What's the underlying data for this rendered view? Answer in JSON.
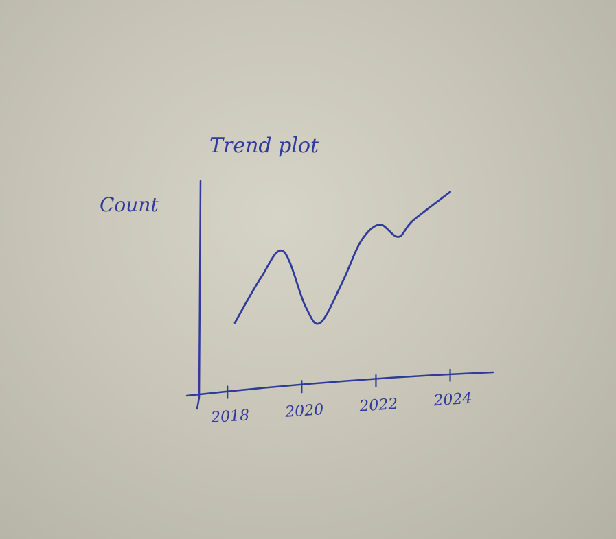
{
  "chart_data": {
    "type": "line",
    "title": "Trend plot",
    "xlabel": "",
    "ylabel": "Count",
    "x_ticks": [
      2018,
      2020,
      2022,
      2024
    ],
    "x_tick_labels": [
      "2018",
      "2020",
      "2022",
      "2024"
    ],
    "xlim": [
      2017.2,
      2025.1
    ],
    "ylim": [
      0,
      10
    ],
    "grid": false,
    "legend": "none",
    "series": [
      {
        "color": "#2f3b9a",
        "x": [
          2018.2,
          2018.9,
          2019.5,
          2020.1,
          2020.5,
          2021.1,
          2021.6,
          2022.1,
          2022.6,
          2023.0,
          2024.0
        ],
        "y": [
          3.0,
          5.2,
          6.5,
          3.8,
          3.0,
          5.0,
          7.0,
          7.8,
          7.2,
          8.0,
          9.4
        ]
      }
    ]
  }
}
